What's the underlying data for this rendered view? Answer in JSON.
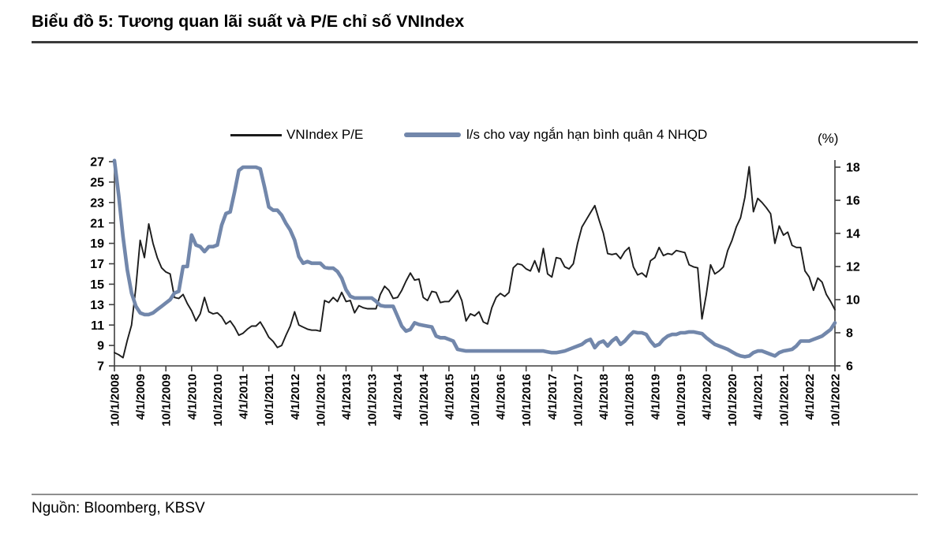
{
  "page": {
    "title": "Biểu đồ 5: Tương quan lãi suất và P/E chỉ số VNIndex",
    "source": "Nguồn: Bloomberg, KBSV"
  },
  "legend": {
    "series1_label": "VNIndex P/E",
    "series2_label": "l/s cho vay ngắn hạn bình quân 4 NHQD",
    "right_axis_unit": "(%)"
  },
  "colors": {
    "pe_line": "#1c1c1c",
    "rate_line": "#7287ab",
    "axis": "#3f3f3f",
    "tick_text": "#000000"
  },
  "chart_data": {
    "type": "line",
    "title": "Biểu đồ 5: Tương quan lãi suất và P/E chỉ số VNIndex",
    "grid": false,
    "legend_position": "top",
    "x_start": "10/1/2008",
    "x_end": "10/1/2022",
    "months_per_tick": 6,
    "x_tick_labels": [
      "10/1/2008",
      "4/1/2009",
      "10/1/2009",
      "4/1/2010",
      "10/1/2010",
      "4/1/2011",
      "10/1/2011",
      "4/1/2012",
      "10/1/2012",
      "4/1/2013",
      "10/1/2013",
      "4/1/2014",
      "10/1/2014",
      "4/1/2015",
      "10/1/2015",
      "4/1/2016",
      "10/1/2016",
      "4/1/2017",
      "10/1/2017",
      "4/1/2018",
      "10/1/2018",
      "4/1/2019",
      "10/1/2019",
      "4/1/2020",
      "10/1/2020",
      "4/1/2021",
      "10/1/2021",
      "4/1/2022",
      "10/1/2022"
    ],
    "left_axis": {
      "ticks": [
        27,
        25,
        23,
        21,
        19,
        17,
        15,
        13,
        11,
        9,
        7
      ],
      "range": [
        7,
        27
      ]
    },
    "right_axis": {
      "label": "(%)",
      "ticks": [
        18,
        16,
        14,
        12,
        10,
        8,
        6
      ],
      "range": [
        6,
        18
      ]
    },
    "series": [
      {
        "name": "VNIndex P/E",
        "axis": "left",
        "color": "#1c1c1c",
        "width": 1.9,
        "values": [
          8.3,
          8.1,
          7.8,
          9.5,
          11.0,
          14.7,
          19.3,
          17.6,
          20.9,
          19.0,
          17.6,
          16.6,
          16.2,
          16.0,
          13.7,
          13.6,
          14.0,
          13.1,
          12.4,
          11.4,
          12.1,
          13.7,
          12.3,
          12.1,
          12.2,
          11.8,
          11.1,
          11.4,
          10.8,
          10.0,
          10.2,
          10.6,
          10.9,
          10.9,
          11.3,
          10.6,
          9.8,
          9.4,
          8.8,
          9.0,
          10.0,
          10.9,
          12.3,
          11.0,
          10.8,
          10.6,
          10.5,
          10.5,
          10.4,
          13.4,
          13.2,
          13.7,
          13.3,
          14.2,
          13.3,
          13.4,
          12.2,
          12.9,
          12.7,
          12.6,
          12.6,
          12.6,
          14.0,
          14.8,
          14.4,
          13.6,
          13.7,
          14.4,
          15.3,
          16.1,
          15.4,
          15.5,
          13.7,
          13.4,
          14.3,
          14.2,
          13.2,
          13.3,
          13.3,
          13.8,
          14.4,
          13.4,
          11.4,
          12.1,
          11.9,
          12.3,
          11.3,
          11.1,
          12.7,
          13.7,
          14.1,
          13.8,
          14.2,
          16.6,
          17.0,
          16.9,
          16.5,
          16.3,
          17.3,
          16.2,
          18.5,
          16.0,
          15.7,
          17.6,
          17.5,
          16.7,
          16.5,
          17.0,
          19.0,
          20.6,
          21.3,
          22.0,
          22.7,
          21.3,
          20.0,
          18.0,
          17.9,
          18.0,
          17.5,
          18.2,
          18.6,
          16.7,
          15.9,
          16.1,
          15.7,
          17.3,
          17.6,
          18.6,
          17.8,
          18.0,
          17.9,
          18.3,
          18.2,
          18.1,
          16.9,
          16.7,
          16.6,
          11.6,
          14.0,
          16.9,
          16.0,
          16.3,
          16.7,
          18.3,
          19.3,
          20.6,
          21.5,
          23.5,
          26.5,
          22.1,
          23.4,
          23.0,
          22.5,
          21.9,
          19.0,
          20.7,
          19.8,
          20.1,
          18.8,
          18.6,
          18.6,
          16.3,
          15.7,
          14.4,
          15.6,
          15.2,
          14.0,
          13.3,
          12.5
        ]
      },
      {
        "name": "l/s cho vay ngắn hạn bình quân 4 NHQD",
        "axis": "right",
        "color": "#7287ab",
        "width": 4.6,
        "values": [
          18.4,
          16.3,
          13.8,
          11.8,
          10.4,
          9.6,
          9.2,
          9.1,
          9.1,
          9.2,
          9.4,
          9.6,
          9.8,
          10.0,
          10.4,
          10.5,
          12.0,
          12.0,
          13.9,
          13.3,
          13.2,
          12.9,
          13.2,
          13.2,
          13.3,
          14.5,
          15.2,
          15.3,
          16.5,
          17.8,
          18.0,
          18.0,
          18.0,
          18.0,
          17.9,
          16.8,
          15.6,
          15.4,
          15.4,
          15.1,
          14.6,
          14.2,
          13.6,
          12.6,
          12.2,
          12.3,
          12.2,
          12.2,
          12.2,
          11.95,
          11.9,
          11.9,
          11.7,
          11.3,
          10.6,
          10.2,
          10.1,
          10.1,
          10.1,
          10.1,
          10.1,
          9.9,
          9.65,
          9.6,
          9.6,
          9.6,
          9.0,
          8.4,
          8.1,
          8.2,
          8.6,
          8.5,
          8.45,
          8.4,
          8.35,
          7.8,
          7.7,
          7.7,
          7.6,
          7.5,
          7.0,
          6.95,
          6.9,
          6.9,
          6.9,
          6.9,
          6.9,
          6.9,
          6.9,
          6.9,
          6.9,
          6.9,
          6.9,
          6.9,
          6.9,
          6.9,
          6.9,
          6.9,
          6.9,
          6.9,
          6.9,
          6.85,
          6.8,
          6.8,
          6.85,
          6.9,
          7.0,
          7.1,
          7.2,
          7.3,
          7.5,
          7.6,
          7.1,
          7.4,
          7.5,
          7.2,
          7.5,
          7.7,
          7.3,
          7.5,
          7.8,
          8.05,
          8.0,
          8.0,
          7.9,
          7.5,
          7.2,
          7.3,
          7.6,
          7.8,
          7.9,
          7.9,
          8.0,
          8.0,
          8.05,
          8.05,
          8.0,
          7.95,
          7.7,
          7.5,
          7.3,
          7.2,
          7.1,
          7.0,
          6.85,
          6.7,
          6.6,
          6.55,
          6.6,
          6.8,
          6.9,
          6.9,
          6.8,
          6.7,
          6.6,
          6.8,
          6.9,
          6.95,
          7.0,
          7.2,
          7.5,
          7.5,
          7.5,
          7.6,
          7.7,
          7.8,
          8.0,
          8.2,
          8.6
        ]
      }
    ]
  }
}
